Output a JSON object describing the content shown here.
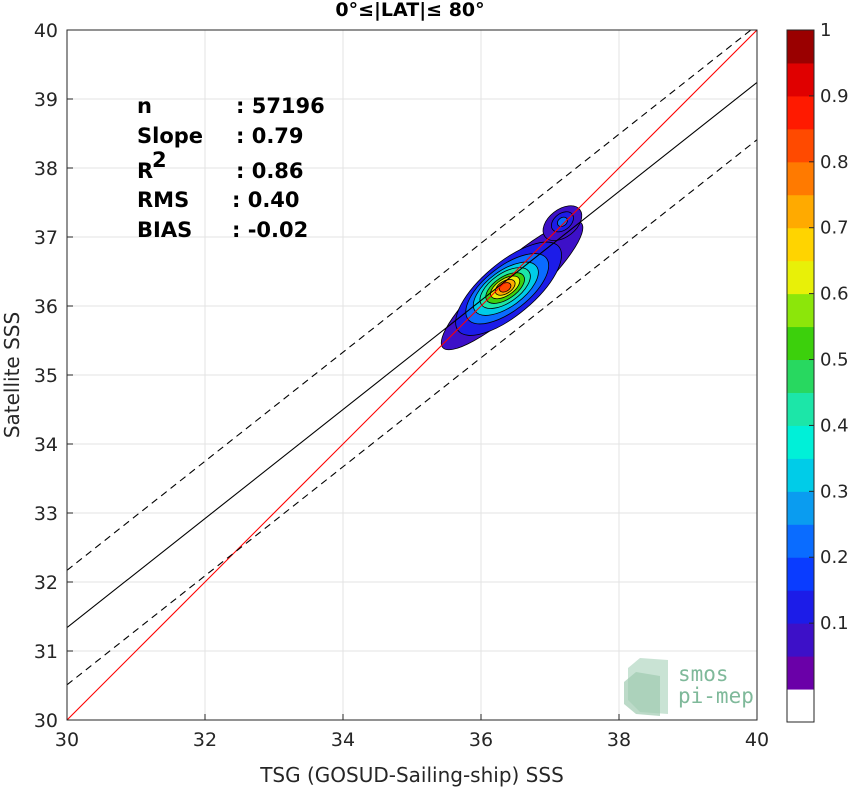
{
  "chart_data": {
    "type": "scatter",
    "title": "0°≤|LAT|≤ 80°",
    "xlabel": "TSG (GOSUD-Sailing-ship) SSS",
    "ylabel": "Satellite SSS",
    "xlim": [
      30,
      40
    ],
    "ylim": [
      30,
      40
    ],
    "x_ticks": [
      "30",
      "32",
      "34",
      "36",
      "38",
      "40"
    ],
    "y_ticks": [
      "30",
      "31",
      "32",
      "33",
      "34",
      "35",
      "36",
      "37",
      "38",
      "39",
      "40"
    ],
    "grid": true,
    "stats": [
      {
        "label": "n",
        "value": ": 57196"
      },
      {
        "label": "Slope",
        "value": ": 0.79"
      },
      {
        "label": "R",
        "sup": "2",
        "value": ": 0.86"
      },
      {
        "label": "RMS",
        "value": ": 0.40"
      },
      {
        "label": "BIAS",
        "value": ": -0.02"
      }
    ],
    "lines": {
      "identity": {
        "slope": 1,
        "intercept": 0,
        "color": "#ff0000"
      },
      "regression": {
        "slope": 0.79,
        "intercept": 7.64,
        "color": "#000000"
      },
      "upper_bound": {
        "slope": 0.79,
        "intercept": 8.47,
        "color": "#000000",
        "dash": true
      },
      "lower_bound": {
        "slope": 0.79,
        "intercept": 6.81,
        "color": "#000000",
        "dash": true
      }
    },
    "density": {
      "main_peak": {
        "x": 36.35,
        "y": 36.27
      },
      "secondary_peak": {
        "x": 37.2,
        "y": 37.22
      },
      "levels": [
        {
          "level": 0.05,
          "cx": 36.45,
          "cy": 36.3,
          "rx": 1.35,
          "ry": 0.32,
          "angle": 42
        },
        {
          "level": 0.1,
          "cx": 36.4,
          "cy": 36.25,
          "rx": 0.95,
          "ry": 0.38,
          "angle": 40
        },
        {
          "level": 0.2,
          "cx": 36.38,
          "cy": 36.25,
          "rx": 0.72,
          "ry": 0.32,
          "angle": 38
        },
        {
          "level": 0.3,
          "cx": 36.36,
          "cy": 36.25,
          "rx": 0.55,
          "ry": 0.26,
          "angle": 36
        },
        {
          "level": 0.4,
          "cx": 36.35,
          "cy": 36.26,
          "rx": 0.42,
          "ry": 0.21,
          "angle": 35
        },
        {
          "level": 0.5,
          "cx": 36.35,
          "cy": 36.26,
          "rx": 0.32,
          "ry": 0.16,
          "angle": 34
        },
        {
          "level": 0.6,
          "cx": 36.35,
          "cy": 36.27,
          "rx": 0.24,
          "ry": 0.12,
          "angle": 33
        },
        {
          "level": 0.7,
          "cx": 36.35,
          "cy": 36.27,
          "rx": 0.16,
          "ry": 0.09,
          "angle": 32
        },
        {
          "level": 0.8,
          "cx": 36.35,
          "cy": 36.27,
          "rx": 0.09,
          "ry": 0.06,
          "angle": 30
        }
      ],
      "secondary_levels": [
        {
          "level": 0.05,
          "cx": 37.18,
          "cy": 37.2,
          "rx": 0.32,
          "ry": 0.2,
          "angle": 38
        },
        {
          "level": 0.1,
          "cx": 37.18,
          "cy": 37.22,
          "rx": 0.18,
          "ry": 0.12,
          "angle": 38
        },
        {
          "level": 0.2,
          "cx": 37.18,
          "cy": 37.22,
          "rx": 0.08,
          "ry": 0.06,
          "angle": 38
        }
      ]
    },
    "colorbar": {
      "ticks": [
        "0.1",
        "0.2",
        "0.3",
        "0.4",
        "0.5",
        "0.6",
        "0.7",
        "0.8",
        "0.9",
        "1"
      ],
      "levels": [
        0,
        0.05,
        0.1,
        0.15,
        0.2,
        0.25,
        0.3,
        0.35,
        0.4,
        0.45,
        0.5,
        0.55,
        0.6,
        0.65,
        0.7,
        0.75,
        0.8,
        0.85,
        0.9,
        0.95,
        1
      ],
      "colors": [
        "#ffffff",
        "#6a00a8",
        "#3d10c8",
        "#1c1ce8",
        "#0a3cff",
        "#0a6cff",
        "#0a9cf0",
        "#00cce8",
        "#00f0d8",
        "#1ce6a8",
        "#28d860",
        "#3cd00c",
        "#8ce60a",
        "#e8f008",
        "#ffd400",
        "#ffaa00",
        "#ff7a00",
        "#ff4a00",
        "#ff1a00",
        "#e00000",
        "#9a0000"
      ]
    },
    "logo": {
      "line1": "smos",
      "line2": "pi-mep"
    }
  }
}
